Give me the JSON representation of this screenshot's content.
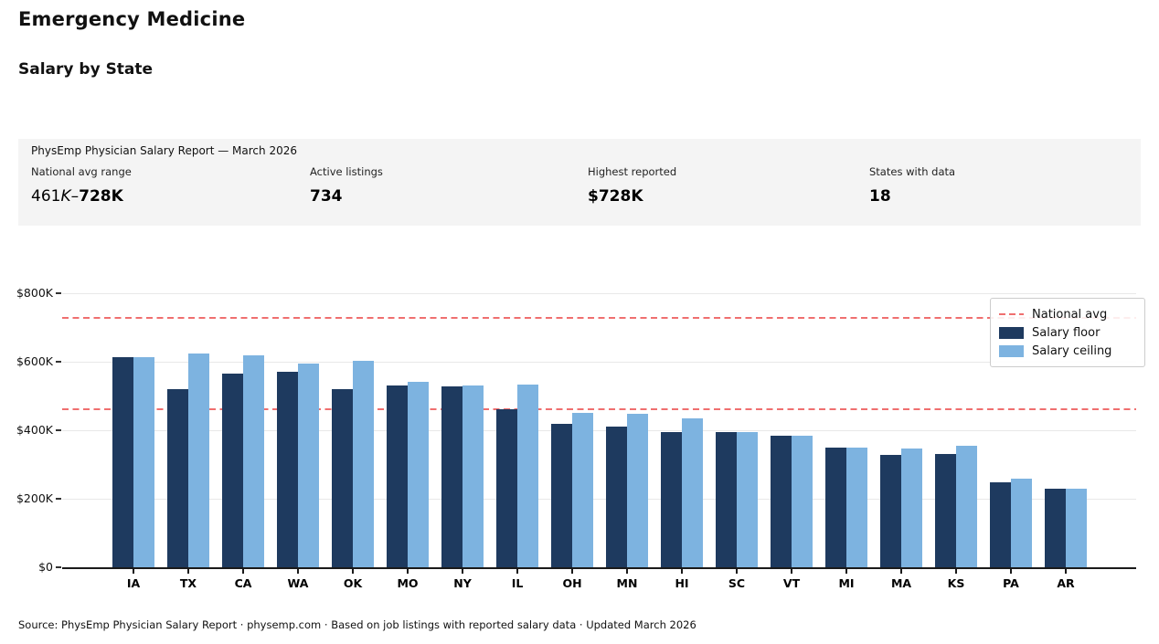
{
  "header": {
    "title": "Emergency Medicine",
    "subtitle": "Salary by State"
  },
  "report_panel": {
    "title": "PhysEmp Physician Salary Report — March 2026",
    "stats": [
      {
        "label": "National avg range",
        "value_light": "461",
        "value_italic": "K",
        "value_dash": "–",
        "value_bold": "728K"
      },
      {
        "label": "Active listings",
        "value": "734"
      },
      {
        "label": "Highest reported",
        "value": "$728K"
      },
      {
        "label": "States with data",
        "value": "18"
      }
    ]
  },
  "chart_data": {
    "type": "bar",
    "title": "Emergency Medicine — Salary by State",
    "categories": [
      "IA",
      "TX",
      "CA",
      "WA",
      "OK",
      "MO",
      "NY",
      "IL",
      "OH",
      "MN",
      "HI",
      "SC",
      "VT",
      "MI",
      "MA",
      "KS",
      "PA",
      "AR"
    ],
    "series": [
      {
        "name": "Salary floor",
        "color": "#1e3a5f",
        "values": [
          613,
          520,
          565,
          572,
          520,
          530,
          528,
          461,
          420,
          410,
          395,
          395,
          385,
          350,
          327,
          330,
          248,
          230
        ]
      },
      {
        "name": "Salary ceiling",
        "color": "#7db3e0",
        "values": [
          613,
          625,
          618,
          595,
          603,
          541,
          530,
          535,
          450,
          449,
          435,
          395,
          385,
          350,
          348,
          356,
          258,
          230
        ]
      }
    ],
    "values_unit": "thousand USD",
    "reference_lines": [
      {
        "label": "National avg",
        "color": "#ef6f6f",
        "value": 461
      },
      {
        "label": "National avg",
        "color": "#ef6f6f",
        "value": 728
      }
    ],
    "y_ticks": [
      {
        "value": 0,
        "label": "$0"
      },
      {
        "value": 200,
        "label": "$200K"
      },
      {
        "value": 400,
        "label": "$400K"
      },
      {
        "value": 600,
        "label": "$600K"
      },
      {
        "value": 800,
        "label": "$800K"
      }
    ],
    "ylim": [
      0,
      830
    ],
    "grid": true,
    "legend": {
      "position": "upper right",
      "entries": [
        "National avg",
        "Salary floor",
        "Salary ceiling"
      ]
    }
  },
  "footer": {
    "source": "Source: PhysEmp Physician Salary Report · physemp.com · Based on job listings with reported salary data · Updated March 2026"
  }
}
